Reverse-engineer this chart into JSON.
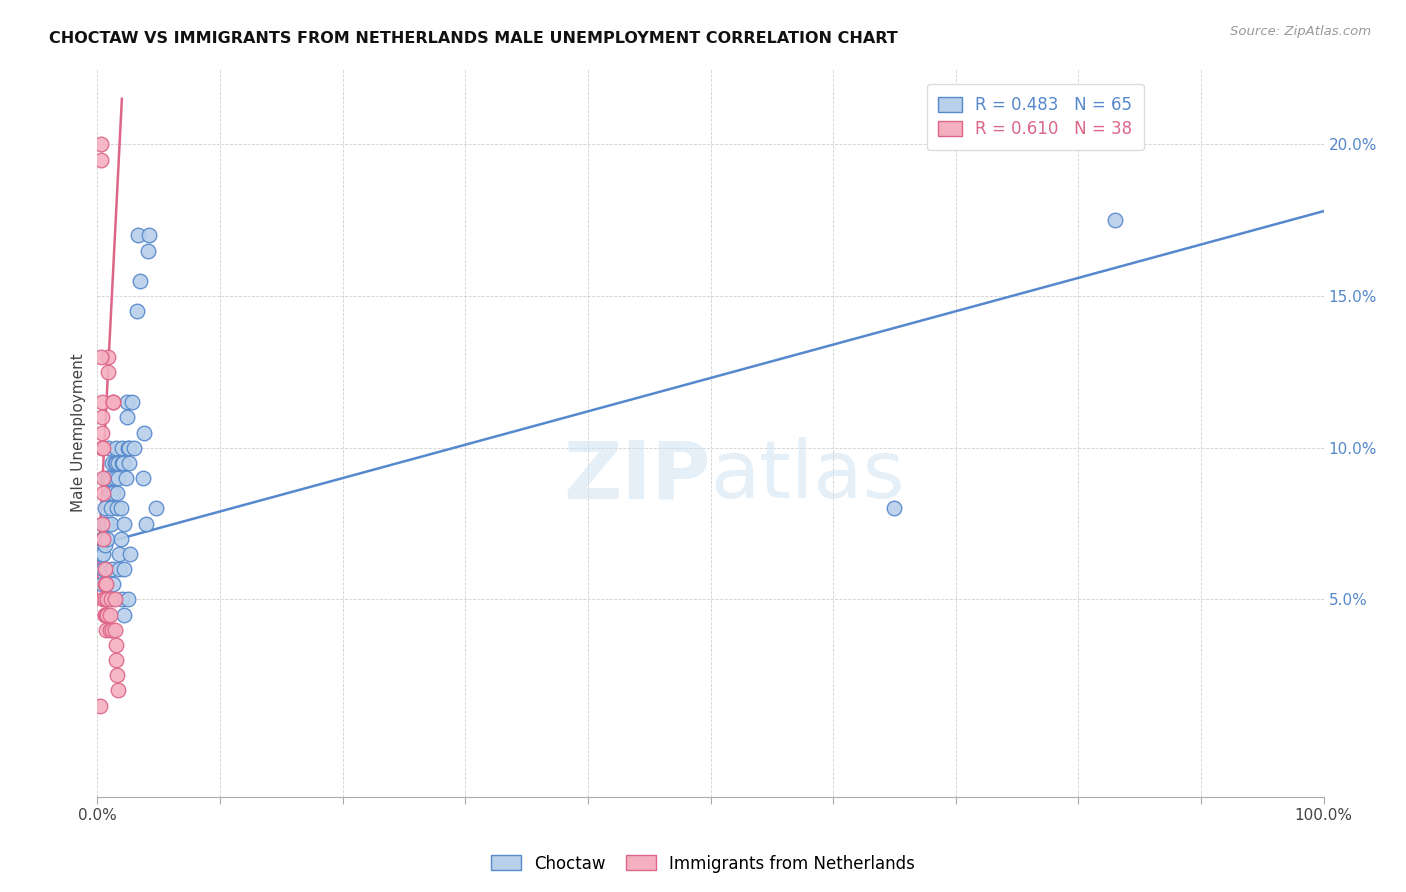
{
  "title": "CHOCTAW VS IMMIGRANTS FROM NETHERLANDS MALE UNEMPLOYMENT CORRELATION CHART",
  "source": "Source: ZipAtlas.com",
  "ylabel": "Male Unemployment",
  "watermark": "ZIPatlas",
  "legend_blue_r": "R = 0.483",
  "legend_blue_n": "N = 65",
  "legend_pink_r": "R = 0.610",
  "legend_pink_n": "N = 38",
  "legend_label_blue": "Choctaw",
  "legend_label_pink": "Immigrants from Netherlands",
  "xlim": [
    0.0,
    1.0
  ],
  "ylim": [
    -0.015,
    0.225
  ],
  "xtick_positions": [
    0.0,
    0.1,
    0.2,
    0.3,
    0.4,
    0.5,
    0.6,
    0.7,
    0.8,
    0.9,
    1.0
  ],
  "xtick_labels": [
    "0.0%",
    "",
    "",
    "",
    "",
    "",
    "",
    "",
    "",
    "",
    "100.0%"
  ],
  "ytick_positions": [
    0.05,
    0.1,
    0.15,
    0.2
  ],
  "ytick_labels": [
    "5.0%",
    "10.0%",
    "15.0%",
    "20.0%"
  ],
  "color_blue": "#b8d0ea",
  "color_pink": "#f5b0c0",
  "line_color_blue": "#5588cc",
  "line_color_pink": "#dd6688",
  "blue_points": [
    [
      0.003,
      0.065
    ],
    [
      0.004,
      0.055
    ],
    [
      0.004,
      0.07
    ],
    [
      0.005,
      0.06
    ],
    [
      0.005,
      0.075
    ],
    [
      0.005,
      0.065
    ],
    [
      0.006,
      0.068
    ],
    [
      0.006,
      0.075
    ],
    [
      0.006,
      0.08
    ],
    [
      0.007,
      0.09
    ],
    [
      0.007,
      0.06
    ],
    [
      0.007,
      0.055
    ],
    [
      0.008,
      0.07
    ],
    [
      0.008,
      0.075
    ],
    [
      0.009,
      0.09
    ],
    [
      0.009,
      0.1
    ],
    [
      0.01,
      0.09
    ],
    [
      0.01,
      0.085
    ],
    [
      0.011,
      0.08
    ],
    [
      0.011,
      0.075
    ],
    [
      0.012,
      0.095
    ],
    [
      0.012,
      0.06
    ],
    [
      0.013,
      0.055
    ],
    [
      0.013,
      0.085
    ],
    [
      0.014,
      0.09
    ],
    [
      0.014,
      0.095
    ],
    [
      0.015,
      0.1
    ],
    [
      0.015,
      0.095
    ],
    [
      0.016,
      0.085
    ],
    [
      0.016,
      0.08
    ],
    [
      0.017,
      0.09
    ],
    [
      0.017,
      0.095
    ],
    [
      0.018,
      0.065
    ],
    [
      0.018,
      0.06
    ],
    [
      0.019,
      0.08
    ],
    [
      0.019,
      0.07
    ],
    [
      0.02,
      0.095
    ],
    [
      0.02,
      0.1
    ],
    [
      0.021,
      0.095
    ],
    [
      0.021,
      0.095
    ],
    [
      0.022,
      0.06
    ],
    [
      0.022,
      0.075
    ],
    [
      0.023,
      0.09
    ],
    [
      0.024,
      0.115
    ],
    [
      0.024,
      0.11
    ],
    [
      0.025,
      0.1
    ],
    [
      0.026,
      0.095
    ],
    [
      0.026,
      0.1
    ],
    [
      0.027,
      0.065
    ],
    [
      0.028,
      0.115
    ],
    [
      0.03,
      0.1
    ],
    [
      0.032,
      0.145
    ],
    [
      0.033,
      0.17
    ],
    [
      0.035,
      0.155
    ],
    [
      0.037,
      0.09
    ],
    [
      0.038,
      0.105
    ],
    [
      0.04,
      0.075
    ],
    [
      0.041,
      0.165
    ],
    [
      0.042,
      0.17
    ],
    [
      0.02,
      0.05
    ],
    [
      0.022,
      0.045
    ],
    [
      0.025,
      0.05
    ],
    [
      0.048,
      0.08
    ],
    [
      0.65,
      0.08
    ],
    [
      0.83,
      0.175
    ]
  ],
  "pink_points": [
    [
      0.003,
      0.195
    ],
    [
      0.003,
      0.2
    ],
    [
      0.004,
      0.115
    ],
    [
      0.004,
      0.11
    ],
    [
      0.004,
      0.105
    ],
    [
      0.004,
      0.1
    ],
    [
      0.004,
      0.075
    ],
    [
      0.005,
      0.07
    ],
    [
      0.005,
      0.1
    ],
    [
      0.005,
      0.09
    ],
    [
      0.005,
      0.085
    ],
    [
      0.005,
      0.05
    ],
    [
      0.006,
      0.045
    ],
    [
      0.006,
      0.06
    ],
    [
      0.006,
      0.055
    ],
    [
      0.006,
      0.05
    ],
    [
      0.006,
      0.045
    ],
    [
      0.007,
      0.055
    ],
    [
      0.007,
      0.045
    ],
    [
      0.007,
      0.04
    ],
    [
      0.008,
      0.05
    ],
    [
      0.008,
      0.045
    ],
    [
      0.009,
      0.13
    ],
    [
      0.009,
      0.125
    ],
    [
      0.01,
      0.045
    ],
    [
      0.01,
      0.04
    ],
    [
      0.011,
      0.05
    ],
    [
      0.012,
      0.04
    ],
    [
      0.013,
      0.115
    ],
    [
      0.013,
      0.115
    ],
    [
      0.014,
      0.05
    ],
    [
      0.014,
      0.04
    ],
    [
      0.015,
      0.03
    ],
    [
      0.015,
      0.035
    ],
    [
      0.016,
      0.025
    ],
    [
      0.017,
      0.02
    ],
    [
      0.002,
      0.015
    ],
    [
      0.003,
      0.13
    ]
  ],
  "blue_line_x": [
    0.0,
    1.0
  ],
  "blue_line_y": [
    0.068,
    0.178
  ],
  "pink_line_x": [
    -0.002,
    0.02
  ],
  "pink_line_y": [
    0.04,
    0.215
  ]
}
